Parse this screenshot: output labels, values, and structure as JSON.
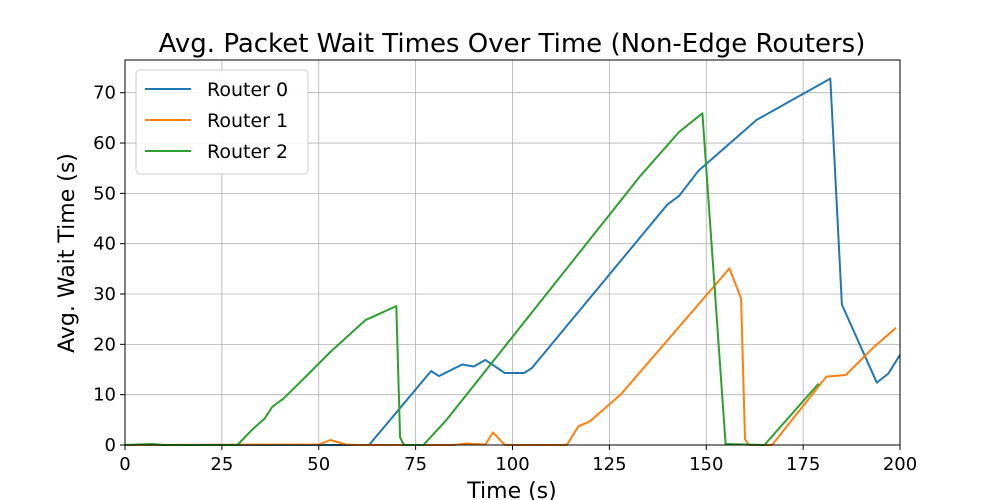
{
  "chart_data": {
    "type": "line",
    "title": "Avg. Packet Wait Times Over Time (Non-Edge Routers)",
    "xlabel": "Time (s)",
    "ylabel": "Avg. Wait Time (s)",
    "xlim": [
      0,
      200
    ],
    "ylim": [
      0,
      76.5
    ],
    "xticks": [
      0,
      25,
      50,
      75,
      100,
      125,
      150,
      175,
      200
    ],
    "yticks": [
      0,
      10,
      20,
      30,
      40,
      50,
      60,
      70
    ],
    "grid": true,
    "legend_position": "top-left",
    "series": [
      {
        "name": "Router 0",
        "color": "#1f77b4",
        "points": [
          [
            0,
            0
          ],
          [
            63,
            0
          ],
          [
            79,
            14.7
          ],
          [
            81,
            13.7
          ],
          [
            87,
            16.0
          ],
          [
            90,
            15.6
          ],
          [
            93,
            16.9
          ],
          [
            98,
            14.3
          ],
          [
            103,
            14.3
          ],
          [
            105,
            15.3
          ],
          [
            140,
            47.8
          ],
          [
            143,
            49.5
          ],
          [
            148,
            54.5
          ],
          [
            163,
            64.6
          ],
          [
            182,
            72.8
          ],
          [
            185,
            27.9
          ],
          [
            194,
            12.4
          ],
          [
            197,
            14.2
          ],
          [
            200,
            17.9
          ]
        ]
      },
      {
        "name": "Router 1",
        "color": "#ff7f0e",
        "points": [
          [
            0,
            0
          ],
          [
            50,
            0.1
          ],
          [
            53,
            1.0
          ],
          [
            57,
            0.1
          ],
          [
            60,
            0
          ],
          [
            85,
            0
          ],
          [
            88,
            0.3
          ],
          [
            93,
            0.1
          ],
          [
            95,
            2.5
          ],
          [
            98,
            0
          ],
          [
            114,
            0
          ],
          [
            117,
            3.7
          ],
          [
            120,
            4.7
          ],
          [
            128,
            10.1
          ],
          [
            156,
            35.1
          ],
          [
            159,
            29.1
          ],
          [
            160,
            1.2
          ],
          [
            161,
            0
          ],
          [
            167,
            0
          ],
          [
            181,
            13.6
          ],
          [
            186,
            13.9
          ],
          [
            193,
            19.3
          ],
          [
            199,
            23.3
          ]
        ]
      },
      {
        "name": "Router 2",
        "color": "#2ca02c",
        "points": [
          [
            0,
            0
          ],
          [
            7,
            0.2
          ],
          [
            10,
            0
          ],
          [
            29,
            0
          ],
          [
            33,
            3.2
          ],
          [
            36,
            5.2
          ],
          [
            38,
            7.6
          ],
          [
            41,
            9.3
          ],
          [
            46,
            13.1
          ],
          [
            53,
            18.5
          ],
          [
            62,
            24.8
          ],
          [
            70,
            27.6
          ],
          [
            71,
            1.5
          ],
          [
            72,
            0
          ],
          [
            77,
            0
          ],
          [
            83,
            5.0
          ],
          [
            133,
            53.5
          ],
          [
            143,
            62.2
          ],
          [
            149,
            65.9
          ],
          [
            155,
            0.2
          ],
          [
            165,
            0
          ],
          [
            179,
            12.2
          ]
        ]
      }
    ]
  }
}
